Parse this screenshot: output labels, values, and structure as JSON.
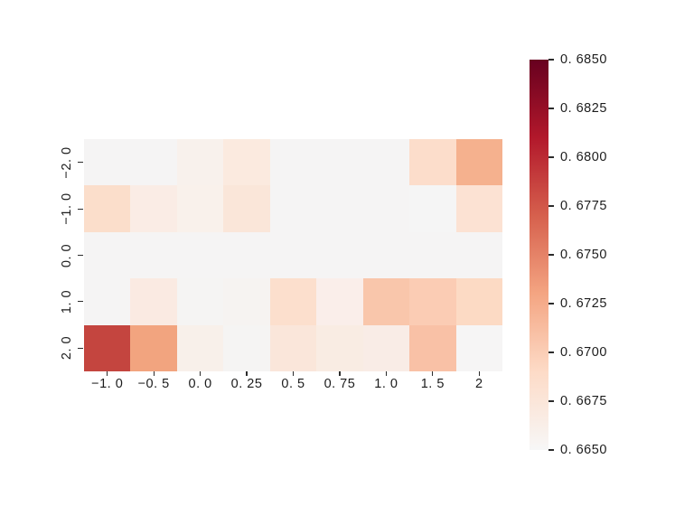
{
  "figure": {
    "background": "#ffffff",
    "tick_color": "#2b2b2b",
    "label_color": "#1c1c1c",
    "title": ""
  },
  "chart_data": {
    "type": "heatmap",
    "title": "",
    "xlabel": "",
    "ylabel": "",
    "grid": false,
    "colormap": "RdBu_r-upper-half (white-gray to dark red)",
    "x_categories": [
      -1.0,
      -0.5,
      0.0,
      0.25,
      0.5,
      0.75,
      1.0,
      1.5,
      2
    ],
    "y_categories": [
      -2.0,
      -1.0,
      0.0,
      1.0,
      2.0
    ],
    "x_tick_labels_display": [
      "−1. 0",
      "−0. 5",
      "0. 0",
      "0. 25",
      "0. 5",
      "0. 75",
      "1. 0",
      "1. 5",
      "2"
    ],
    "y_tick_labels_display": [
      "−2. 0",
      "−1. 0",
      "0. 0",
      "1. 0",
      "2. 0"
    ],
    "values": [
      [
        0.665,
        0.665,
        0.6658,
        0.6669,
        0.665,
        0.665,
        0.665,
        0.6688,
        0.672
      ],
      [
        0.6687,
        0.6666,
        0.6659,
        0.6674,
        0.665,
        0.665,
        0.665,
        0.665,
        0.668
      ],
      [
        0.665,
        0.665,
        0.665,
        0.665,
        0.665,
        0.665,
        0.665,
        0.665,
        0.665
      ],
      [
        0.665,
        0.6668,
        0.665,
        0.6656,
        0.6684,
        0.6663,
        0.6705,
        0.67,
        0.669
      ],
      [
        0.6788,
        0.673,
        0.666,
        0.665,
        0.6674,
        0.6666,
        0.6665,
        0.671,
        0.665
      ]
    ],
    "cell_colors": [
      [
        "#f5f4f4",
        "#f5f4f4",
        "#f8f1ec",
        "#fbeadf",
        "#f5f4f4",
        "#f5f4f4",
        "#f5f4f4",
        "#fcddcb",
        "#f5b18e"
      ],
      [
        "#fbdecb",
        "#faece5",
        "#f9f1eb",
        "#fae6d9",
        "#f5f4f4",
        "#f5f4f4",
        "#f5f4f4",
        "#f5f5f5",
        "#fce2d3"
      ],
      [
        "#f5f4f4",
        "#f5f4f4",
        "#f5f4f4",
        "#f5f4f4",
        "#f5f4f4",
        "#f5f4f4",
        "#f5f4f4",
        "#f5f4f4",
        "#f5f4f4"
      ],
      [
        "#f5f4f4",
        "#faeae2",
        "#f5f4f3",
        "#f6f3f1",
        "#fcdfcd",
        "#faeeea",
        "#f9c6ab",
        "#fbccb4",
        "#fcdac4"
      ],
      [
        "#c4453f",
        "#f2a47f",
        "#f8f0ea",
        "#f5f4f3",
        "#fae6da",
        "#f9ece3",
        "#f9ece6",
        "#f9c1a6",
        "#f6f5f5"
      ]
    ],
    "colorbar": {
      "min": 0.665,
      "max": 0.685,
      "position": "right",
      "tick_values": [
        0.685,
        0.6825,
        0.68,
        0.6775,
        0.675,
        0.6725,
        0.67,
        0.6675,
        0.665
      ],
      "tick_labels_display": [
        "0. 6850",
        "0. 6825",
        "0. 6800",
        "0. 6775",
        "0. 6750",
        "0. 6725",
        "0. 6700",
        "0. 6675",
        "0. 6650"
      ],
      "gradient_stops_bottom_to_top": [
        "#f7f7f7",
        "#fddbc7",
        "#f4a582",
        "#d6604d",
        "#b2182b",
        "#67001f"
      ]
    }
  }
}
